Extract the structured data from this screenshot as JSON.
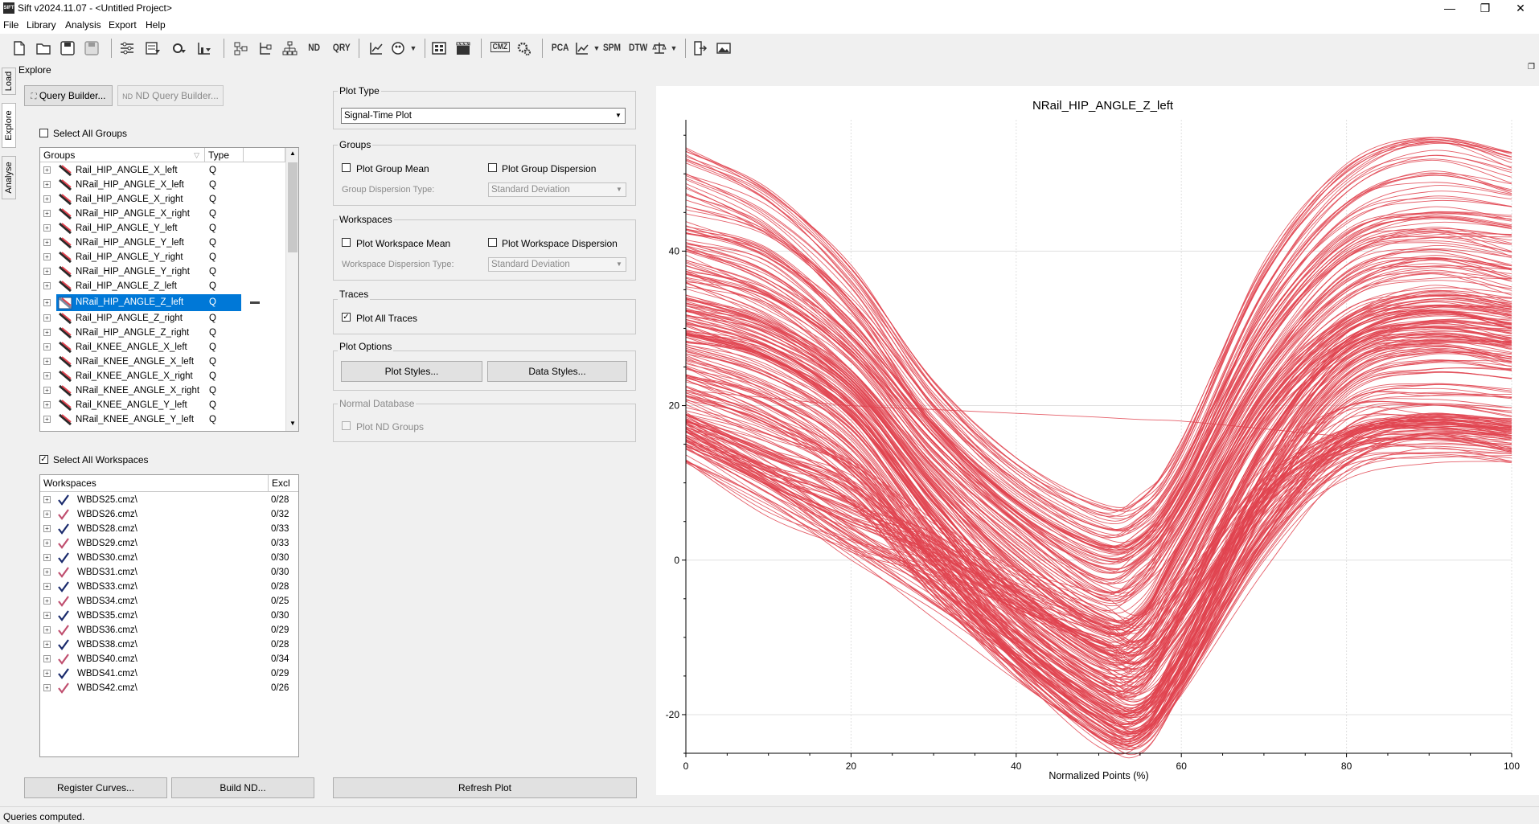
{
  "window": {
    "title": "Sift v2024.11.07 - <Untitled Project>",
    "logo_text": "SIFT",
    "controls": {
      "minimize": "—",
      "maximize": "❐",
      "close": "✕"
    }
  },
  "menu": [
    "File",
    "Library",
    "Analysis",
    "Export",
    "Help"
  ],
  "toolbar": {
    "icons": [
      "new-file",
      "open-folder",
      "save",
      "save-disabled",
      "settings-sliders",
      "table-filter",
      "gear-filter",
      "chart-filter",
      "tree-layout",
      "tree-branch",
      "tree-hierarchy",
      "nd",
      "qry",
      "line-chart",
      "palette",
      "film-grid",
      "clapperboard",
      "cmz",
      "cogs",
      "pca",
      "line-scatter",
      "spm",
      "dtw",
      "scale",
      "export",
      "image"
    ],
    "text_items": {
      "nd": "ND",
      "qry": "QRY",
      "cmz": "CMZ",
      "pca": "PCA",
      "spm": "SPM",
      "dtw": "DTW"
    }
  },
  "side_tabs": [
    "Load",
    "Explore",
    "Analyse"
  ],
  "panel": {
    "title": "Explore",
    "query_builder": "Query Builder...",
    "nd_query_builder": "ND Query Builder...",
    "select_all_groups": "Select All Groups",
    "select_all_groups_checked": false,
    "groups_table": {
      "headers": [
        "Groups",
        "Type"
      ],
      "rows": [
        {
          "name": "Rail_HIP_ANGLE_X_left",
          "type": "Q"
        },
        {
          "name": "NRail_HIP_ANGLE_X_left",
          "type": "Q"
        },
        {
          "name": "Rail_HIP_ANGLE_X_right",
          "type": "Q"
        },
        {
          "name": "NRail_HIP_ANGLE_X_right",
          "type": "Q"
        },
        {
          "name": "Rail_HIP_ANGLE_Y_left",
          "type": "Q"
        },
        {
          "name": "NRail_HIP_ANGLE_Y_left",
          "type": "Q"
        },
        {
          "name": "Rail_HIP_ANGLE_Y_right",
          "type": "Q"
        },
        {
          "name": "NRail_HIP_ANGLE_Y_right",
          "type": "Q"
        },
        {
          "name": "Rail_HIP_ANGLE_Z_left",
          "type": "Q"
        },
        {
          "name": "NRail_HIP_ANGLE_Z_left",
          "type": "Q",
          "selected": true
        },
        {
          "name": "Rail_HIP_ANGLE_Z_right",
          "type": "Q"
        },
        {
          "name": "NRail_HIP_ANGLE_Z_right",
          "type": "Q"
        },
        {
          "name": "Rail_KNEE_ANGLE_X_left",
          "type": "Q"
        },
        {
          "name": "NRail_KNEE_ANGLE_X_left",
          "type": "Q"
        },
        {
          "name": "Rail_KNEE_ANGLE_X_right",
          "type": "Q"
        },
        {
          "name": "NRail_KNEE_ANGLE_X_right",
          "type": "Q"
        },
        {
          "name": "Rail_KNEE_ANGLE_Y_left",
          "type": "Q"
        },
        {
          "name": "NRail_KNEE_ANGLE_Y_left",
          "type": "Q"
        }
      ]
    },
    "select_all_workspaces": "Select All Workspaces",
    "select_all_workspaces_checked": true,
    "workspaces_table": {
      "headers": [
        "Workspaces",
        "Excl"
      ],
      "rows": [
        {
          "name": "WBDS25.cmz\\",
          "excl": "0/28"
        },
        {
          "name": "WBDS26.cmz\\",
          "excl": "0/32"
        },
        {
          "name": "WBDS28.cmz\\",
          "excl": "0/33"
        },
        {
          "name": "WBDS29.cmz\\",
          "excl": "0/33"
        },
        {
          "name": "WBDS30.cmz\\",
          "excl": "0/30"
        },
        {
          "name": "WBDS31.cmz\\",
          "excl": "0/30"
        },
        {
          "name": "WBDS33.cmz\\",
          "excl": "0/28"
        },
        {
          "name": "WBDS34.cmz\\",
          "excl": "0/25"
        },
        {
          "name": "WBDS35.cmz\\",
          "excl": "0/30"
        },
        {
          "name": "WBDS36.cmz\\",
          "excl": "0/29"
        },
        {
          "name": "WBDS38.cmz\\",
          "excl": "0/28"
        },
        {
          "name": "WBDS40.cmz\\",
          "excl": "0/34"
        },
        {
          "name": "WBDS41.cmz\\",
          "excl": "0/29"
        },
        {
          "name": "WBDS42.cmz\\",
          "excl": "0/26"
        }
      ]
    },
    "register_curves": "Register Curves...",
    "build_nd": "Build ND...",
    "refresh_plot": "Refresh Plot"
  },
  "options": {
    "plot_type": {
      "title": "Plot Type",
      "value": "Signal-Time Plot"
    },
    "groups": {
      "title": "Groups",
      "plot_group_mean": "Plot Group Mean",
      "plot_group_dispersion": "Plot Group Dispersion",
      "dispersion_type_label": "Group Dispersion Type:",
      "dispersion_type_value": "Standard Deviation"
    },
    "workspaces": {
      "title": "Workspaces",
      "plot_workspace_mean": "Plot Workspace Mean",
      "plot_workspace_dispersion": "Plot Workspace Dispersion",
      "dispersion_type_label": "Workspace Dispersion Type:",
      "dispersion_type_value": "Standard Deviation"
    },
    "traces": {
      "title": "Traces",
      "plot_all_traces": "Plot All Traces",
      "checked": true
    },
    "plot_options": {
      "title": "Plot Options",
      "plot_styles": "Plot Styles...",
      "data_styles": "Data Styles..."
    },
    "normal_database": {
      "title": "Normal Database",
      "plot_nd_groups": "Plot ND Groups"
    }
  },
  "status": "Queries computed.",
  "colors": {
    "trace": "#e0434f",
    "selection": "#0078d7",
    "grid": "#e0e0e0"
  },
  "chart_data": {
    "type": "line",
    "title": "NRail_HIP_ANGLE_Z_left",
    "xlabel": "Normalized Points (%)",
    "ylabel": "",
    "xlim": [
      0,
      100
    ],
    "ylim": [
      -25,
      57
    ],
    "x_ticks": [
      0,
      20,
      40,
      60,
      80,
      100
    ],
    "y_ticks": [
      -20,
      0,
      20,
      40
    ],
    "grid": true,
    "legend": "none",
    "x": [
      0,
      10,
      20,
      30,
      40,
      50,
      55,
      60,
      70,
      80,
      90,
      100
    ],
    "series": [
      {
        "values": [
          50,
          45,
          35,
          20,
          10,
          4,
          5,
          12,
          35,
          48,
          52,
          50
        ]
      },
      {
        "values": [
          43,
          40,
          31,
          18,
          8,
          2,
          3,
          10,
          30,
          42,
          45,
          44
        ]
      },
      {
        "values": [
          38,
          34,
          26,
          14,
          4,
          -3,
          -1,
          6,
          25,
          37,
          40,
          38
        ]
      },
      {
        "values": [
          35,
          32,
          25,
          12,
          2,
          -6,
          -5,
          4,
          22,
          33,
          36,
          35
        ]
      },
      {
        "values": [
          32,
          29,
          22,
          9,
          -2,
          -9,
          -8,
          1,
          20,
          30,
          33,
          32
        ]
      },
      {
        "values": [
          30,
          27,
          20,
          6,
          -6,
          -14,
          -13,
          -5,
          16,
          28,
          31,
          30
        ]
      },
      {
        "values": [
          27,
          24,
          17,
          3,
          -10,
          -18,
          -19,
          -10,
          12,
          26,
          29,
          28
        ]
      },
      {
        "values": [
          24,
          20,
          13,
          0,
          -12,
          -21,
          -22,
          -14,
          9,
          24,
          27,
          26
        ]
      },
      {
        "values": [
          20,
          16,
          10,
          -2,
          -12,
          -20,
          -21,
          -14,
          5,
          18,
          20,
          19
        ]
      },
      {
        "values": [
          18,
          14,
          10,
          2,
          -4,
          -8,
          -10,
          -4,
          10,
          17,
          18,
          17
        ]
      },
      {
        "values": [
          16,
          10,
          3,
          -4,
          -12,
          -19,
          -21,
          -15,
          2,
          14,
          17,
          16
        ]
      },
      {
        "values": [
          15,
          9,
          4,
          0,
          -7,
          -14,
          -16,
          -10,
          6,
          14,
          16,
          15
        ]
      },
      {
        "values": [
          22,
          21,
          20,
          19.5,
          19,
          18.5,
          18.2,
          18,
          17,
          16,
          15.5,
          15
        ]
      }
    ]
  }
}
